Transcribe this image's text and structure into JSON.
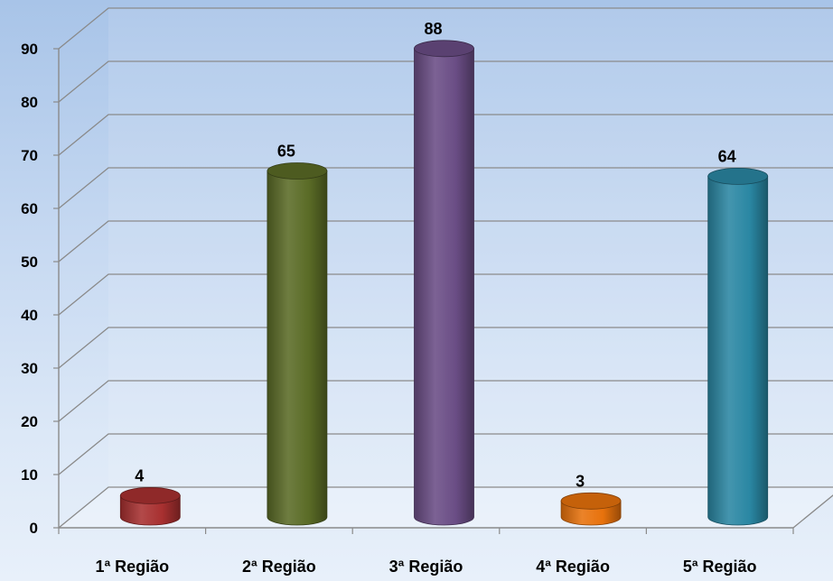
{
  "chart_data": {
    "type": "bar",
    "style": "3d-cylinder",
    "title": "",
    "xlabel": "",
    "ylabel": "",
    "categories": [
      "1ª Região",
      "2ª Região",
      "3ª Região",
      "4ª Região",
      "5ª Região"
    ],
    "values": [
      4,
      65,
      88,
      3,
      64
    ],
    "data_labels": [
      "4",
      "65",
      "88",
      "3",
      "64"
    ],
    "colors": [
      "#a83030",
      "#5a6b26",
      "#6a4d85",
      "#e8720c",
      "#2a87a3"
    ],
    "ylim": [
      0,
      90
    ],
    "yticks": [
      "0",
      "10",
      "20",
      "30",
      "40",
      "50",
      "60",
      "70",
      "80",
      "90"
    ],
    "grid": true,
    "legend": "none"
  }
}
